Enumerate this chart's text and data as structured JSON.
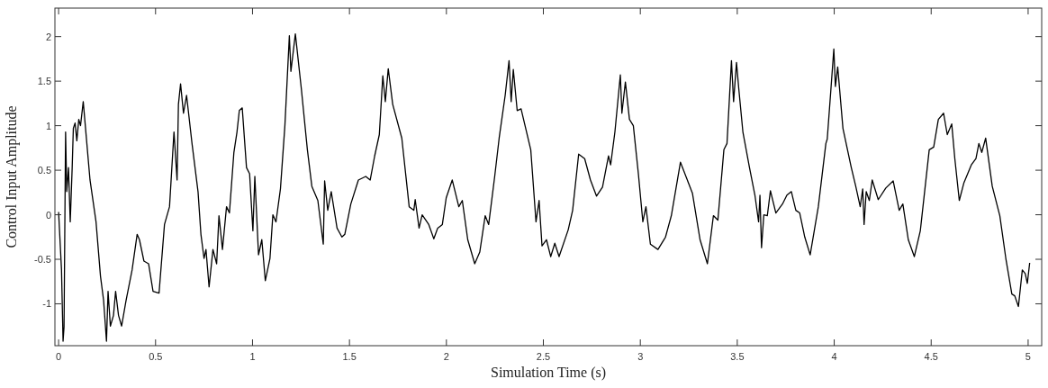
{
  "chart_data": {
    "type": "line",
    "xlabel": "Simulation Time (s)",
    "ylabel": "Control Input Amplitude",
    "xlim": [
      -0.019,
      5.07
    ],
    "ylim": [
      -1.47,
      2.32
    ],
    "xticks": [
      0,
      0.5,
      1,
      1.5,
      2,
      2.5,
      3,
      3.5,
      4,
      4.5,
      5
    ],
    "yticks": [
      -1,
      -0.5,
      0,
      0.5,
      1,
      1.5,
      2
    ],
    "grid": false,
    "marker": "none",
    "line_style": "solid",
    "series": [
      {
        "color": "#000000",
        "x": [
          0,
          0.015,
          0.023,
          0.028,
          0.036,
          0.042,
          0.051,
          0.06,
          0.07,
          0.076,
          0.085,
          0.094,
          0.104,
          0.113,
          0.127,
          0.162,
          0.193,
          0.216,
          0.232,
          0.247,
          0.255,
          0.267,
          0.283,
          0.294,
          0.309,
          0.325,
          0.348,
          0.379,
          0.405,
          0.417,
          0.44,
          0.464,
          0.487,
          0.518,
          0.546,
          0.572,
          0.595,
          0.611,
          0.618,
          0.629,
          0.644,
          0.66,
          0.688,
          0.719,
          0.734,
          0.75,
          0.76,
          0.776,
          0.796,
          0.815,
          0.827,
          0.845,
          0.866,
          0.881,
          0.904,
          0.92,
          0.932,
          0.947,
          0.969,
          0.985,
          1.002,
          1.012,
          1.031,
          1.048,
          1.066,
          1.09,
          1.105,
          1.121,
          1.144,
          1.167,
          1.19,
          1.198,
          1.221,
          1.252,
          1.283,
          1.306,
          1.337,
          1.365,
          1.372,
          1.388,
          1.406,
          1.436,
          1.461,
          1.476,
          1.507,
          1.546,
          1.584,
          1.607,
          1.63,
          1.654,
          1.672,
          1.685,
          1.7,
          1.723,
          1.77,
          1.808,
          1.832,
          1.839,
          1.859,
          1.875,
          1.909,
          1.935,
          1.955,
          1.979,
          1.999,
          2.03,
          2.064,
          2.082,
          2.11,
          2.146,
          2.172,
          2.2,
          2.218,
          2.249,
          2.272,
          2.303,
          2.323,
          2.334,
          2.345,
          2.365,
          2.385,
          2.435,
          2.462,
          2.478,
          2.493,
          2.516,
          2.538,
          2.559,
          2.581,
          2.628,
          2.651,
          2.682,
          2.713,
          2.743,
          2.774,
          2.805,
          2.836,
          2.847,
          2.869,
          2.897,
          2.905,
          2.923,
          2.944,
          2.964,
          2.99,
          3.013,
          3.029,
          3.052,
          3.091,
          3.13,
          3.16,
          3.207,
          3.269,
          3.308,
          3.346,
          3.377,
          3.4,
          3.431,
          3.447,
          3.47,
          3.481,
          3.496,
          3.508,
          3.529,
          3.563,
          3.591,
          3.61,
          3.617,
          3.625,
          3.637,
          3.655,
          3.671,
          3.699,
          3.733,
          3.756,
          3.779,
          3.802,
          3.822,
          3.848,
          3.876,
          3.918,
          3.957,
          3.964,
          3.983,
          3.998,
          4.006,
          4.018,
          4.045,
          4.088,
          4.111,
          4.134,
          4.147,
          4.154,
          4.165,
          4.181,
          4.196,
          4.227,
          4.266,
          4.304,
          4.335,
          4.354,
          4.382,
          4.413,
          4.444,
          4.49,
          4.513,
          4.537,
          4.564,
          4.583,
          4.606,
          4.622,
          4.645,
          4.669,
          4.707,
          4.731,
          4.746,
          4.761,
          4.781,
          4.815,
          4.854,
          4.885,
          4.916,
          4.931,
          4.95,
          4.97,
          4.985,
          4.996,
          5.008
        ],
        "values": [
          0.03,
          -0.62,
          -1.42,
          -1.26,
          0.93,
          0.26,
          0.53,
          -0.08,
          0.53,
          0.97,
          1.03,
          0.83,
          1.07,
          1.0,
          1.27,
          0.39,
          -0.08,
          -0.69,
          -0.96,
          -1.42,
          -0.86,
          -1.25,
          -1.13,
          -0.86,
          -1.13,
          -1.25,
          -0.96,
          -0.62,
          -0.22,
          -0.28,
          -0.52,
          -0.55,
          -0.86,
          -0.88,
          -0.11,
          0.09,
          0.93,
          0.39,
          1.24,
          1.47,
          1.14,
          1.34,
          0.8,
          0.26,
          -0.22,
          -0.49,
          -0.39,
          -0.81,
          -0.39,
          -0.55,
          -0.01,
          -0.39,
          0.09,
          0.02,
          0.7,
          0.93,
          1.17,
          1.2,
          0.53,
          0.46,
          -0.18,
          0.43,
          -0.45,
          -0.28,
          -0.74,
          -0.49,
          0.0,
          -0.08,
          0.29,
          1.0,
          2.01,
          1.61,
          2.03,
          1.41,
          0.73,
          0.32,
          0.16,
          -0.33,
          0.38,
          0.05,
          0.26,
          -0.15,
          -0.25,
          -0.22,
          0.12,
          0.39,
          0.43,
          0.39,
          0.66,
          0.9,
          1.56,
          1.27,
          1.64,
          1.24,
          0.86,
          0.09,
          0.05,
          0.17,
          -0.15,
          0.0,
          -0.11,
          -0.27,
          -0.15,
          -0.11,
          0.19,
          0.39,
          0.09,
          0.16,
          -0.28,
          -0.55,
          -0.42,
          -0.01,
          -0.11,
          0.43,
          0.86,
          1.34,
          1.73,
          1.27,
          1.63,
          1.17,
          1.19,
          0.73,
          -0.08,
          0.16,
          -0.35,
          -0.28,
          -0.47,
          -0.32,
          -0.47,
          -0.17,
          0.05,
          0.68,
          0.63,
          0.39,
          0.21,
          0.31,
          0.66,
          0.56,
          0.93,
          1.57,
          1.14,
          1.49,
          1.07,
          1.0,
          0.46,
          -0.08,
          0.09,
          -0.33,
          -0.39,
          -0.25,
          -0.01,
          0.59,
          0.24,
          -0.28,
          -0.55,
          -0.01,
          -0.06,
          0.73,
          0.8,
          1.73,
          1.27,
          1.71,
          1.41,
          0.93,
          0.53,
          0.22,
          -0.08,
          0.22,
          -0.37,
          0.0,
          -0.01,
          0.27,
          0.02,
          0.12,
          0.22,
          0.26,
          0.05,
          0.02,
          -0.25,
          -0.45,
          0.09,
          0.8,
          0.85,
          1.41,
          1.86,
          1.44,
          1.66,
          0.97,
          0.53,
          0.32,
          0.09,
          0.29,
          -0.11,
          0.26,
          0.16,
          0.39,
          0.17,
          0.3,
          0.38,
          0.05,
          0.12,
          -0.28,
          -0.47,
          -0.18,
          0.73,
          0.76,
          1.07,
          1.14,
          0.9,
          1.02,
          0.63,
          0.16,
          0.36,
          0.56,
          0.63,
          0.8,
          0.7,
          0.86,
          0.32,
          -0.01,
          -0.49,
          -0.89,
          -0.91,
          -1.03,
          -0.62,
          -0.66,
          -0.77,
          -0.54
        ]
      }
    ]
  }
}
